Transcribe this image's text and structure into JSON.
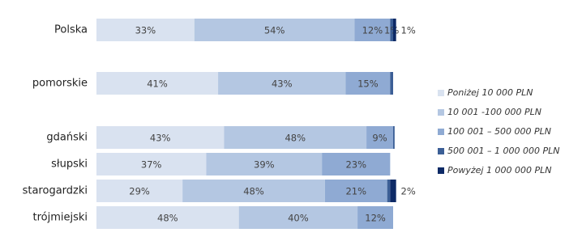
{
  "chart_data": {
    "type": "stacked-bar-horizontal",
    "categories": [
      "Polska",
      "pomorskie",
      "gdański",
      "słupski",
      "starogardzki",
      "trójmiejski"
    ],
    "series": [
      {
        "name": "Poniżej 10 000 PLN",
        "color": "#d9e2f0",
        "values": [
          33,
          41,
          43,
          37,
          29,
          48
        ],
        "value_labels": [
          "33%",
          "41%",
          "43%",
          "37%",
          "29%",
          "48%"
        ]
      },
      {
        "name": "10 001 -100 000 PLN",
        "color": "#b4c7e2",
        "values": [
          54,
          43,
          48,
          39,
          48,
          40
        ],
        "value_labels": [
          "54%",
          "43%",
          "48%",
          "39%",
          "48%",
          "40%"
        ]
      },
      {
        "name": "100 001 – 500 000 PLN",
        "color": "#8faad3",
        "values": [
          12,
          15,
          9,
          23,
          21,
          12
        ],
        "value_labels": [
          "12%",
          "15%",
          "9%",
          "23%",
          "21%",
          "12%"
        ]
      },
      {
        "name": "500 001 – 1 000 000 PLN",
        "color": "#3c5f96",
        "values": [
          1,
          1,
          0.5,
          null,
          1,
          null
        ],
        "value_labels": [
          "1%",
          null,
          null,
          null,
          null,
          null
        ]
      },
      {
        "name": "Powyżej 1 000 000 PLN",
        "color": "#0d2a66",
        "values": [
          1,
          null,
          null,
          null,
          2,
          null
        ],
        "value_labels": [
          "1%",
          null,
          null,
          null,
          "2%",
          null
        ]
      }
    ]
  }
}
